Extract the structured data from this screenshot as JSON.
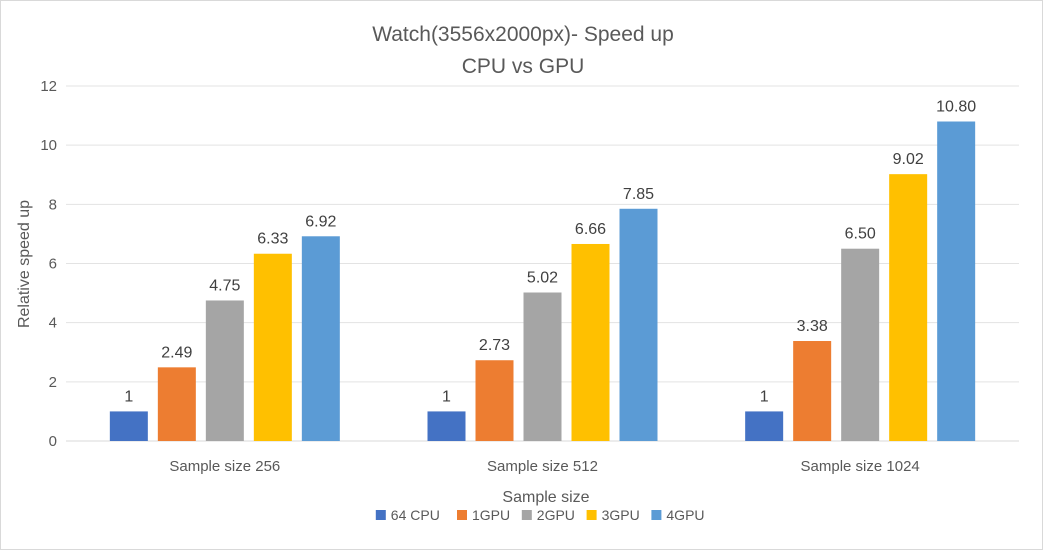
{
  "chart_data": {
    "type": "bar",
    "title": "Watch(3556x2000px)- Speed up",
    "subtitle": "CPU vs GPU",
    "xlabel": "Sample size",
    "ylabel": "Relative speed up",
    "ylim": [
      0,
      12
    ],
    "yticks": [
      0,
      2,
      4,
      6,
      8,
      10,
      12
    ],
    "grid": true,
    "legend_position": "bottom",
    "categories": [
      "Sample size 256",
      "Sample size 512",
      "Sample size 1024"
    ],
    "series": [
      {
        "name": "64 CPU",
        "color": "#4472c4",
        "values": [
          1,
          1,
          1
        ],
        "labels": [
          "1",
          "1",
          "1"
        ]
      },
      {
        "name": "1GPU",
        "color": "#ed7d31",
        "values": [
          2.49,
          2.73,
          3.38
        ],
        "labels": [
          "2.49",
          "2.73",
          "3.38"
        ]
      },
      {
        "name": "2GPU",
        "color": "#a5a5a5",
        "values": [
          4.75,
          5.02,
          6.5
        ],
        "labels": [
          "4.75",
          "5.02",
          "6.50"
        ]
      },
      {
        "name": "3GPU",
        "color": "#ffc000",
        "values": [
          6.33,
          6.66,
          9.02
        ],
        "labels": [
          "6.33",
          "6.66",
          "9.02"
        ]
      },
      {
        "name": "4GPU",
        "color": "#5b9bd5",
        "values": [
          6.92,
          7.85,
          10.8
        ],
        "labels": [
          "6.92",
          "7.85",
          "10.80"
        ]
      }
    ]
  }
}
